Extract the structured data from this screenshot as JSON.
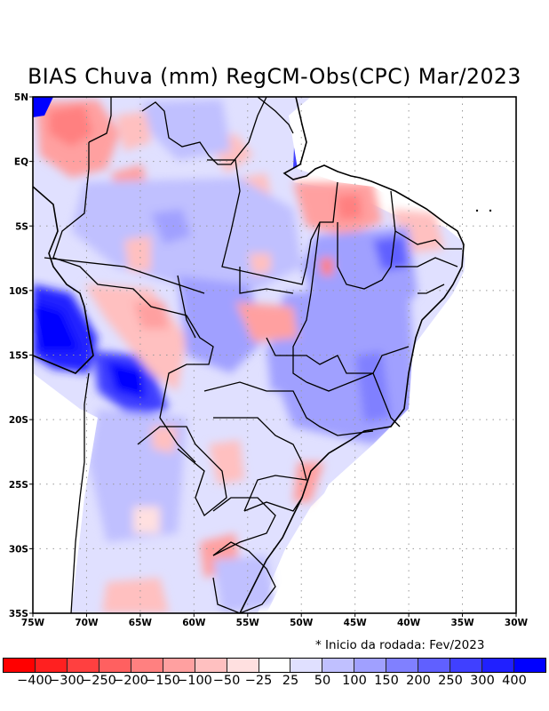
{
  "title": "BIAS Chuva (mm) RegCM-Obs(CPC) Mar/2023",
  "note": "* Inicio da rodada: Fev/2023",
  "map": {
    "lon_range": [
      -75,
      -30
    ],
    "lat_range": [
      -35,
      5
    ],
    "lon_ticks": [
      {
        "value": -75,
        "label": "75W"
      },
      {
        "value": -70,
        "label": "70W"
      },
      {
        "value": -65,
        "label": "65W"
      },
      {
        "value": -60,
        "label": "60W"
      },
      {
        "value": -55,
        "label": "55W"
      },
      {
        "value": -50,
        "label": "50W"
      },
      {
        "value": -45,
        "label": "45W"
      },
      {
        "value": -40,
        "label": "40W"
      },
      {
        "value": -35,
        "label": "35W"
      },
      {
        "value": -30,
        "label": "30W"
      }
    ],
    "lat_ticks": [
      {
        "value": 5,
        "label": "5N"
      },
      {
        "value": 0,
        "label": "EQ"
      },
      {
        "value": -5,
        "label": "5S"
      },
      {
        "value": -10,
        "label": "10S"
      },
      {
        "value": -15,
        "label": "15S"
      },
      {
        "value": -20,
        "label": "20S"
      },
      {
        "value": -25,
        "label": "25S"
      },
      {
        "value": -30,
        "label": "30S"
      },
      {
        "value": -35,
        "label": "35S"
      }
    ],
    "gridlines": "dotted"
  },
  "colorbar": {
    "colors": [
      "#ff0000",
      "#ff2020",
      "#ff4040",
      "#ff6060",
      "#ff8080",
      "#ffa0a0",
      "#ffc0c0",
      "#ffe0e0",
      "#ffffff",
      "#e0e0ff",
      "#c0c0ff",
      "#a0a0ff",
      "#8080ff",
      "#6060ff",
      "#4040ff",
      "#2020ff",
      "#0000ff"
    ],
    "labels": [
      "-400",
      "-300",
      "-250",
      "-200",
      "-150",
      "-100",
      "-50",
      "-25",
      "25",
      "50",
      "100",
      "150",
      "200",
      "250",
      "300",
      "400"
    ],
    "unit": "mm"
  }
}
